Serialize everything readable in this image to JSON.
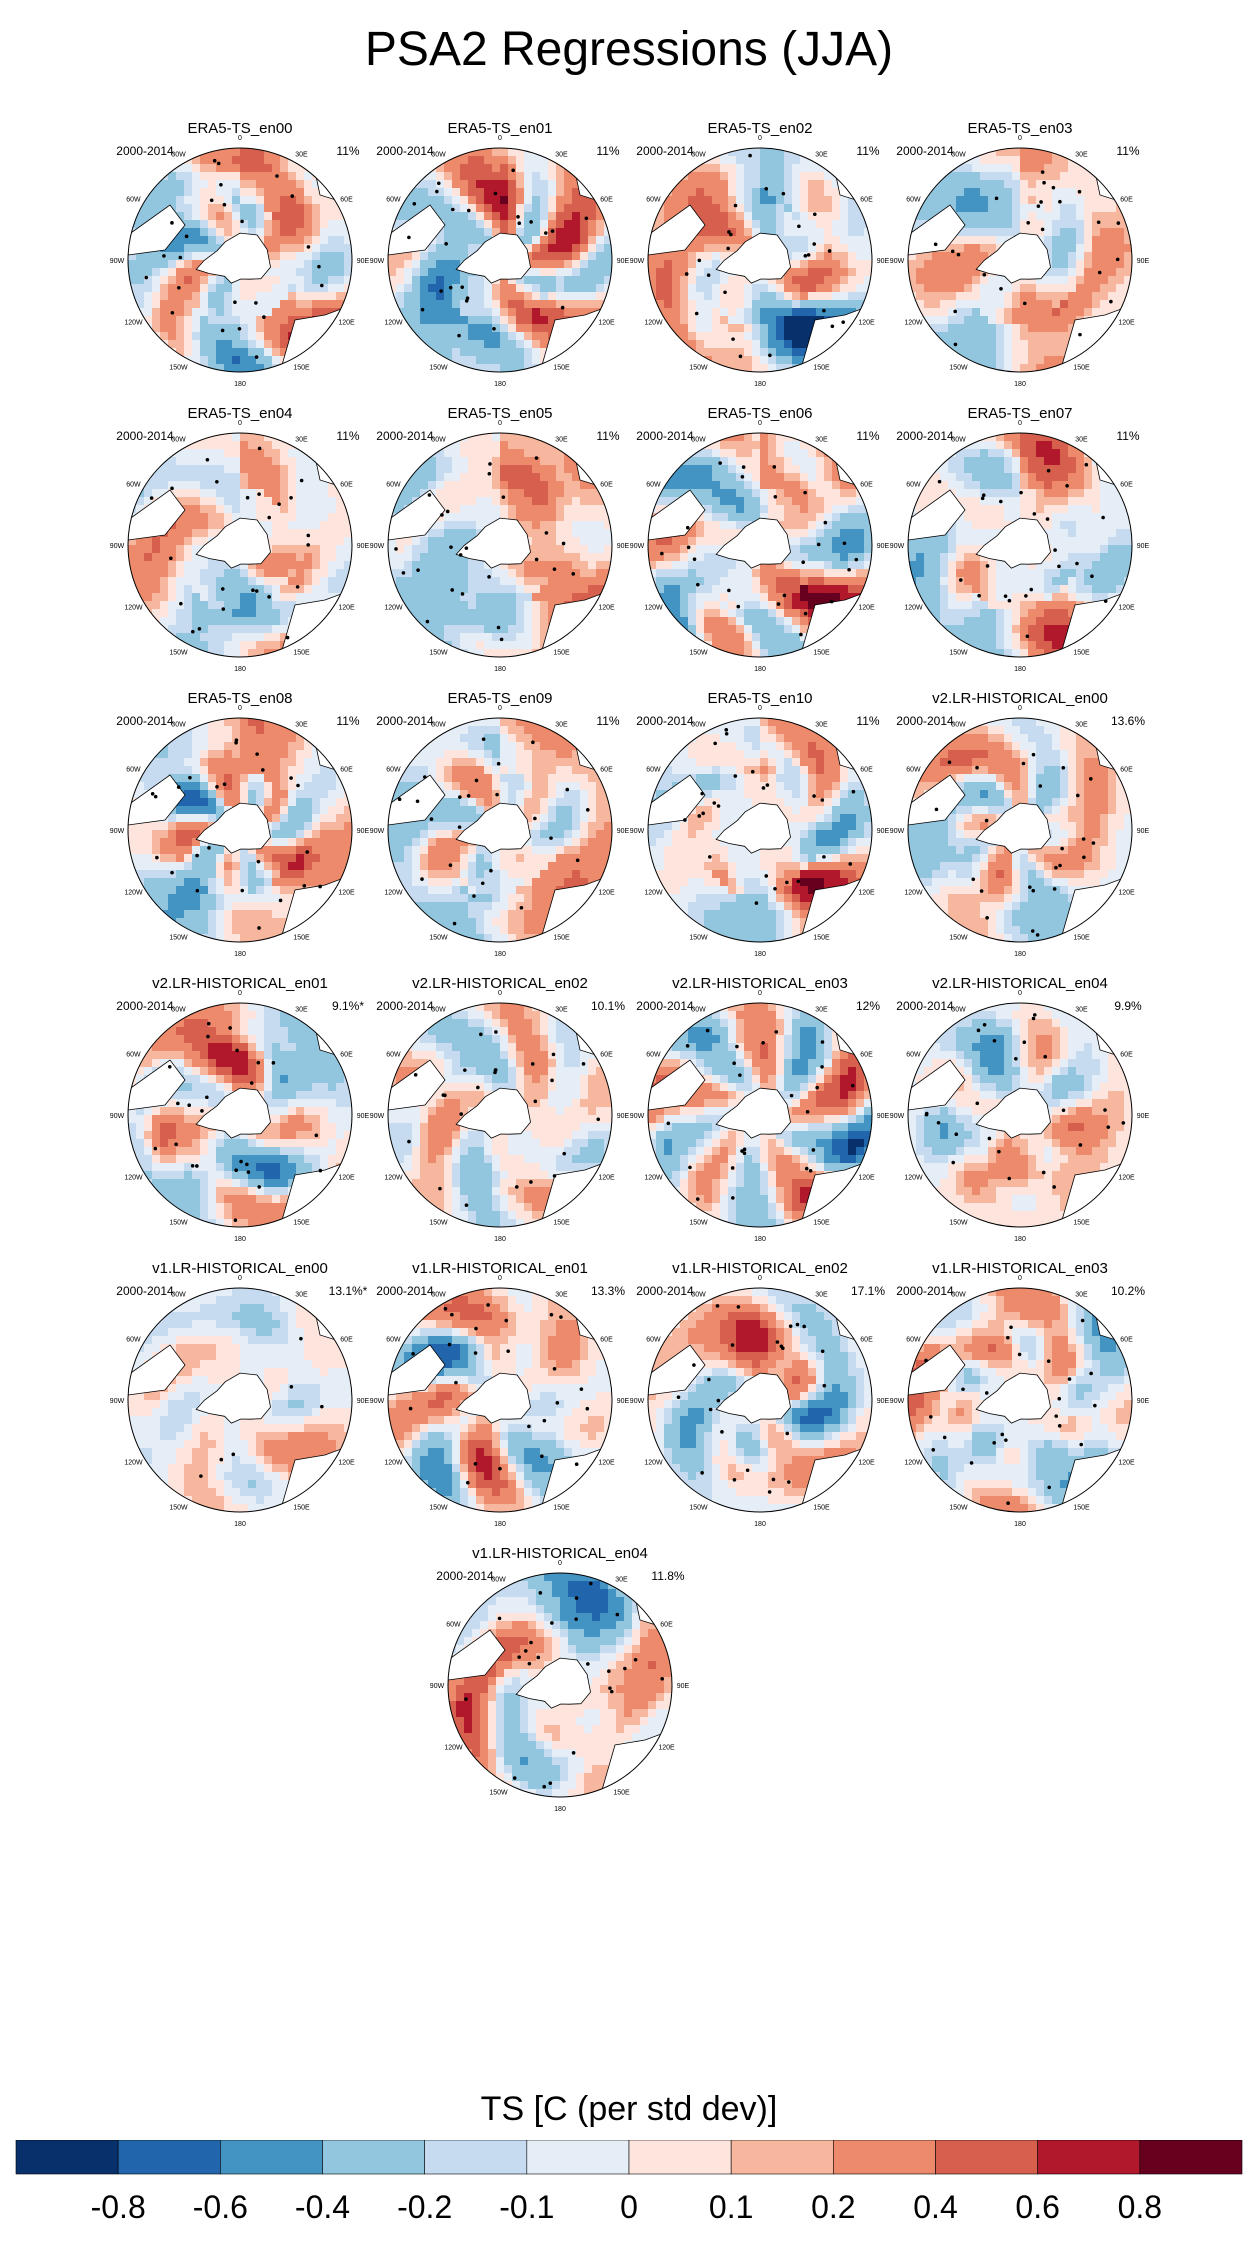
{
  "chart_data": {
    "type": "heatmap",
    "projection": "south polar stereographic",
    "title": "PSA2 Regressions (JJA)",
    "colorbar": {
      "label": "TS [C (per std dev)]",
      "tick_labels": [
        "-0.8",
        "-0.6",
        "-0.4",
        "-0.2",
        "-0.1",
        "0",
        "0.1",
        "0.2",
        "0.4",
        "0.6",
        "0.8"
      ],
      "colors": [
        "#08306b",
        "#2166ac",
        "#4393c3",
        "#92c5de",
        "#c6dbef",
        "#e5eef6",
        "#fde5de",
        "#f7b79e",
        "#ec8a6b",
        "#d6604d",
        "#b2182b",
        "#67001f"
      ]
    },
    "longitude_labels": [
      "0",
      "30E",
      "60E",
      "90E",
      "120E",
      "150E",
      "180",
      "150W",
      "120W",
      "90W",
      "60W",
      "30W"
    ],
    "panels": [
      {
        "name": "ERA5-TS_en00",
        "period": "2000-2014",
        "pct": "11%",
        "pattern": "era5",
        "seed": 1
      },
      {
        "name": "ERA5-TS_en01",
        "period": "2000-2014",
        "pct": "11%",
        "pattern": "era5",
        "seed": 2
      },
      {
        "name": "ERA5-TS_en02",
        "period": "2000-2014",
        "pct": "11%",
        "pattern": "era5b",
        "seed": 3
      },
      {
        "name": "ERA5-TS_en03",
        "period": "2000-2014",
        "pct": "11%",
        "pattern": "era5",
        "seed": 4
      },
      {
        "name": "ERA5-TS_en04",
        "period": "2000-2014",
        "pct": "11%",
        "pattern": "era5",
        "seed": 5
      },
      {
        "name": "ERA5-TS_en05",
        "period": "2000-2014",
        "pct": "11%",
        "pattern": "era5",
        "seed": 6
      },
      {
        "name": "ERA5-TS_en06",
        "period": "2000-2014",
        "pct": "11%",
        "pattern": "era5",
        "seed": 7
      },
      {
        "name": "ERA5-TS_en07",
        "period": "2000-2014",
        "pct": "11%",
        "pattern": "era5",
        "seed": 8
      },
      {
        "name": "ERA5-TS_en08",
        "period": "2000-2014",
        "pct": "11%",
        "pattern": "era5",
        "seed": 9
      },
      {
        "name": "ERA5-TS_en09",
        "period": "2000-2014",
        "pct": "11%",
        "pattern": "era5",
        "seed": 10
      },
      {
        "name": "ERA5-TS_en10",
        "period": "2000-2014",
        "pct": "11%",
        "pattern": "era5",
        "seed": 11
      },
      {
        "name": "v2.LR-HISTORICAL_en00",
        "period": "2000-2014",
        "pct": "13.6%",
        "pattern": "model",
        "seed": 12
      },
      {
        "name": "v2.LR-HISTORICAL_en01",
        "period": "2000-2014",
        "pct": "9.1%*",
        "pattern": "model",
        "seed": 13
      },
      {
        "name": "v2.LR-HISTORICAL_en02",
        "period": "2000-2014",
        "pct": "10.1%",
        "pattern": "model",
        "seed": 14
      },
      {
        "name": "v2.LR-HISTORICAL_en03",
        "period": "2000-2014",
        "pct": "12%",
        "pattern": "model",
        "seed": 15
      },
      {
        "name": "v2.LR-HISTORICAL_en04",
        "period": "2000-2014",
        "pct": "9.9%",
        "pattern": "model",
        "seed": 16
      },
      {
        "name": "v1.LR-HISTORICAL_en00",
        "period": "2000-2014",
        "pct": "13.1%*",
        "pattern": "weak",
        "seed": 17
      },
      {
        "name": "v1.LR-HISTORICAL_en01",
        "period": "2000-2014",
        "pct": "13.3%",
        "pattern": "model",
        "seed": 18
      },
      {
        "name": "v1.LR-HISTORICAL_en02",
        "period": "2000-2014",
        "pct": "17.1%",
        "pattern": "model",
        "seed": 19
      },
      {
        "name": "v1.LR-HISTORICAL_en03",
        "period": "2000-2014",
        "pct": "10.2%",
        "pattern": "model",
        "seed": 20
      },
      {
        "name": "v1.LR-HISTORICAL_en04",
        "period": "2000-2014",
        "pct": "11.8%",
        "pattern": "model",
        "seed": 21
      }
    ]
  }
}
